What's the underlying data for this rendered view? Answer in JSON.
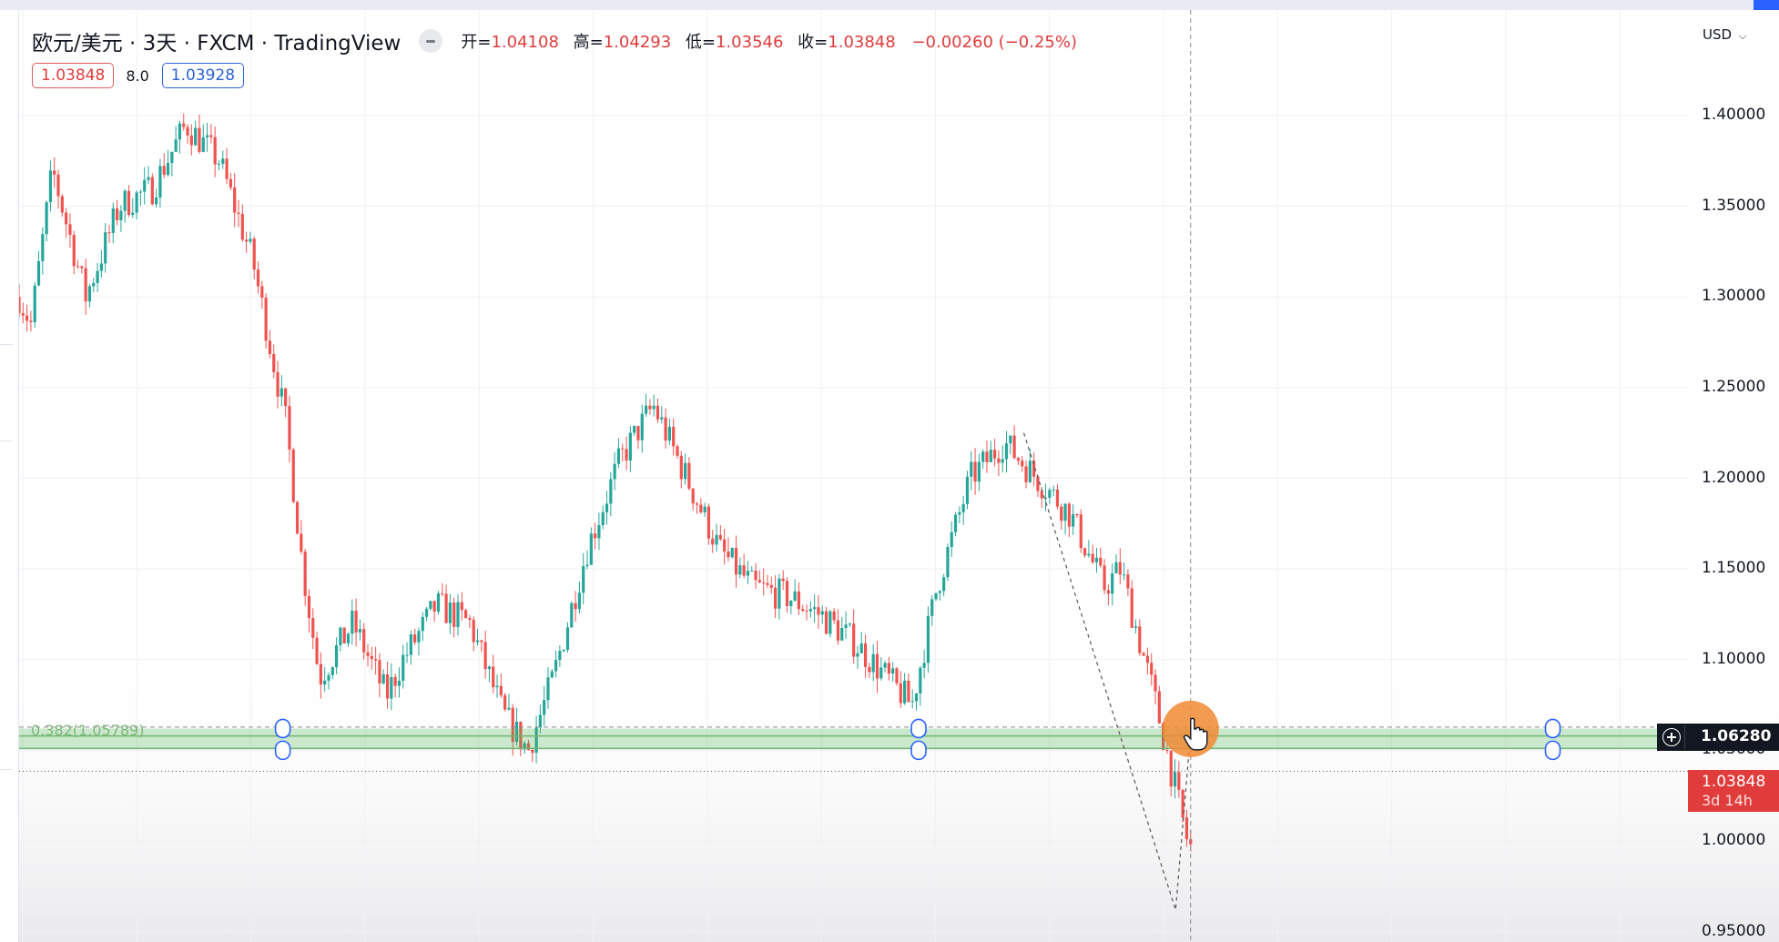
{
  "legend": {
    "symbol": "欧元/美元 · 3天 · FXCM · TradingView",
    "open_label": "开=",
    "open": "1.04108",
    "high_label": "高=",
    "high": "1.04293",
    "low_label": "低=",
    "low": "1.03546",
    "close_label": "收=",
    "close": "1.03848",
    "change": "−0.00260 (−0.25%)"
  },
  "quote": {
    "bid": "1.03848",
    "spread": "8.0",
    "ask": "1.03928"
  },
  "currency_menu": "USD",
  "crosshair_price": "1.06280",
  "last_price": "1.03848",
  "countdown": "3d 14h",
  "fib_level": "0.382(1.05789)",
  "colors": {
    "up": "#26a69a",
    "down": "#ef5350",
    "fib_zone": "#4caf50",
    "cursor": "#f08a32"
  },
  "icons": [
    "minus-icon",
    "chevron-down-icon",
    "plus-circle-icon",
    "hand-pointer-icon"
  ],
  "chart_data": {
    "type": "candlestick",
    "symbol": "EUR/USD",
    "interval": "3D",
    "ylim": [
      0.95,
      1.42
    ],
    "yticks": [
      "1.40000",
      "1.35000",
      "1.30000",
      "1.25000",
      "1.20000",
      "1.15000",
      "1.10000",
      "1.05000",
      "1.00000",
      "0.95000"
    ],
    "ytick_values": [
      1.4,
      1.35,
      1.3,
      1.25,
      1.2,
      1.15,
      1.1,
      1.05,
      1.0,
      0.95
    ],
    "grid": true,
    "path_x": [
      0,
      0.7,
      2,
      4,
      6,
      8,
      10,
      12,
      14,
      16,
      17,
      18,
      20,
      22,
      23,
      25,
      27,
      29,
      30.5,
      32,
      34,
      36,
      38,
      40,
      42,
      44,
      46,
      48,
      50,
      52,
      53.5,
      55,
      57,
      59,
      61,
      63,
      65,
      66,
      68,
      70,
      72,
      74,
      76,
      78,
      80,
      82,
      84,
      86,
      88,
      90,
      91,
      93,
      95,
      96,
      98,
      100
    ],
    "path_y": [
      1.3,
      1.285,
      1.37,
      1.3,
      1.35,
      1.36,
      1.395,
      1.375,
      1.32,
      1.23,
      1.15,
      1.09,
      1.12,
      1.08,
      1.1,
      1.13,
      1.12,
      1.07,
      1.05,
      1.09,
      1.16,
      1.21,
      1.24,
      1.2,
      1.16,
      1.14,
      1.135,
      1.125,
      1.11,
      1.09,
      1.075,
      1.14,
      1.2,
      1.22,
      1.2,
      1.18,
      1.14,
      1.15,
      1.08,
      1.0,
      0.965,
      1.04,
      1.0385,
      1.0385,
      1.0385,
      1.0385,
      1.0385,
      1.0385,
      1.0385,
      1.0385,
      1.0385,
      1.0385,
      1.0385,
      1.0385,
      1.0385,
      1.0385
    ],
    "candle_count": 300,
    "crosshair_x": 70.2,
    "fib_level_value": 1.05789,
    "fib_zone": [
      1.051,
      1.062
    ]
  }
}
